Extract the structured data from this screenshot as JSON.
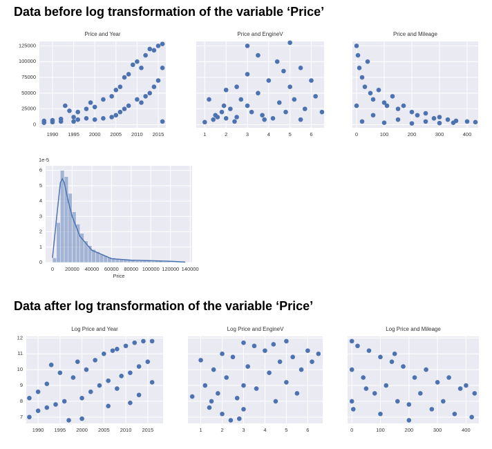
{
  "headings": [
    "Data before log transformation of the variable ‘Price’",
    "Data after log transformation of the variable ‘Price’"
  ],
  "chart_data": [
    {
      "type": "scatter",
      "title": "Price and Year",
      "color": "#4c72b0",
      "grid": true,
      "ytick_labels": true,
      "xlim": [
        1986.9,
        2016.8
      ],
      "xticks": [
        1990,
        1995,
        2000,
        2005,
        2010,
        2015
      ],
      "ylim": [
        -5000,
        132000
      ],
      "yticks": [
        0,
        25000,
        50000,
        75000,
        100000,
        125000
      ],
      "x": [
        1988,
        1988,
        1990,
        1990,
        1992,
        1992,
        1993,
        1994,
        1995,
        1995,
        1996,
        1996,
        1998,
        1998,
        1999,
        2000,
        2000,
        2002,
        2002,
        2004,
        2004,
        2005,
        2005,
        2006,
        2006,
        2007,
        2007,
        2008,
        2008,
        2009,
        2010,
        2010,
        2011,
        2011,
        2012,
        2012,
        2013,
        2013,
        2014,
        2014,
        2015,
        2015,
        2016,
        2016,
        2016
      ],
      "values": [
        3000,
        6000,
        4000,
        7000,
        5000,
        9000,
        30000,
        22000,
        5000,
        12000,
        8000,
        20000,
        10000,
        25000,
        35000,
        8000,
        28000,
        10000,
        40000,
        12000,
        45000,
        15000,
        55000,
        20000,
        60000,
        75000,
        25000,
        30000,
        80000,
        95000,
        40000,
        100000,
        35000,
        90000,
        110000,
        45000,
        120000,
        50000,
        60000,
        118000,
        70000,
        125000,
        5000,
        128000,
        90000
      ]
    },
    {
      "type": "scatter",
      "title": "Price and EngineV",
      "color": "#4c72b0",
      "grid": true,
      "ytick_labels": false,
      "xlim": [
        0.6,
        6.6
      ],
      "xticks": [
        1,
        2,
        3,
        4,
        5,
        6
      ],
      "ylim": [
        -5000,
        132000
      ],
      "yticks": [
        0,
        25000,
        50000,
        75000,
        100000,
        125000
      ],
      "x": [
        1.0,
        1.2,
        1.4,
        1.5,
        1.6,
        1.8,
        1.9,
        2.0,
        2.0,
        2.2,
        2.5,
        2.5,
        2.7,
        3.0,
        3.0,
        3.0,
        3.2,
        3.5,
        3.5,
        3.7,
        4.0,
        4.2,
        4.4,
        4.5,
        4.7,
        4.8,
        5.0,
        5.0,
        5.2,
        5.5,
        5.7,
        6.0,
        6.2,
        6.5,
        2.4,
        3.8,
        5.5
      ],
      "values": [
        4000,
        40000,
        8000,
        15000,
        12000,
        20000,
        30000,
        10000,
        55000,
        25000,
        60000,
        12000,
        40000,
        125000,
        80000,
        30000,
        20000,
        50000,
        110000,
        15000,
        70000,
        10000,
        100000,
        35000,
        85000,
        20000,
        130000,
        60000,
        40000,
        90000,
        25000,
        70000,
        45000,
        20000,
        5000,
        8000,
        8000
      ]
    },
    {
      "type": "scatter",
      "title": "Price and Mileage",
      "color": "#4c72b0",
      "grid": true,
      "ytick_labels": false,
      "xlim": [
        -15,
        440
      ],
      "xticks": [
        0,
        100,
        200,
        300,
        400
      ],
      "ylim": [
        -5000,
        132000
      ],
      "yticks": [
        0,
        25000,
        50000,
        75000,
        100000,
        125000
      ],
      "x": [
        0,
        5,
        10,
        20,
        30,
        40,
        50,
        60,
        80,
        100,
        110,
        130,
        150,
        170,
        200,
        220,
        250,
        280,
        300,
        330,
        360,
        400,
        430,
        20,
        100,
        200,
        300,
        0,
        60,
        150,
        250,
        350
      ],
      "values": [
        125000,
        110000,
        90000,
        75000,
        60000,
        100000,
        50000,
        40000,
        55000,
        35000,
        30000,
        45000,
        25000,
        30000,
        20000,
        15000,
        18000,
        10000,
        12000,
        8000,
        6000,
        5000,
        4000,
        5000,
        3000,
        2000,
        2500,
        30000,
        15000,
        8000,
        5000,
        3000
      ]
    },
    {
      "type": "histogram",
      "xlabel": "Price",
      "offset_label": "1e-5",
      "color": "#4c72b0",
      "grid": true,
      "ytick_labels": true,
      "xlim": [
        -7000,
        142000
      ],
      "xticks": [
        0,
        20000,
        40000,
        60000,
        80000,
        100000,
        120000,
        140000
      ],
      "ylim": [
        0,
        6.3
      ],
      "yticks": [
        0,
        1,
        2,
        3,
        4,
        5,
        6
      ],
      "bins": [
        0,
        4000,
        8000,
        12000,
        16000,
        20000,
        24000,
        28000,
        32000,
        36000,
        40000,
        44000,
        48000,
        52000,
        56000,
        60000,
        64000,
        68000,
        72000,
        76000,
        80000,
        84000,
        88000,
        92000,
        96000,
        100000,
        104000,
        108000,
        112000,
        116000,
        120000,
        124000,
        128000,
        132000
      ],
      "values": [
        0.3,
        2.6,
        6.0,
        5.6,
        4.5,
        3.3,
        2.5,
        1.9,
        1.4,
        1.1,
        0.85,
        0.7,
        0.55,
        0.45,
        0.35,
        0.3,
        0.25,
        0.2,
        0.2,
        0.15,
        0.12,
        0.1,
        0.1,
        0.12,
        0.1,
        0.08,
        0.08,
        0.1,
        0.06,
        0.05,
        0.04,
        0.04,
        0.03
      ],
      "kde": {
        "x": [
          0,
          4000,
          8000,
          10000,
          12000,
          16000,
          20000,
          28000,
          40000,
          60000,
          80000,
          100000,
          120000,
          135000
        ],
        "values": [
          0.3,
          2.8,
          5.2,
          5.45,
          5.2,
          4.0,
          3.0,
          1.7,
          0.8,
          0.25,
          0.15,
          0.12,
          0.08,
          0.03
        ]
      }
    },
    {
      "type": "scatter",
      "title": "Log Price and Year",
      "color": "#4c72b0",
      "grid": true,
      "ytick_labels": true,
      "xlim": [
        1987.3,
        2018.5
      ],
      "xticks": [
        1990,
        1995,
        2000,
        2005,
        2010,
        2015
      ],
      "ylim": [
        6.6,
        12.1
      ],
      "yticks": [
        7,
        8,
        9,
        10,
        11,
        12
      ],
      "x": [
        1988,
        1988,
        1990,
        1990,
        1992,
        1992,
        1993,
        1994,
        1995,
        1996,
        1997,
        1998,
        1999,
        2000,
        2000,
        2001,
        2002,
        2003,
        2004,
        2005,
        2006,
        2007,
        2008,
        2008,
        2009,
        2010,
        2011,
        2012,
        2013,
        2013,
        2014,
        2015,
        2016,
        2016,
        2011,
        2006
      ],
      "values": [
        7.0,
        8.2,
        7.4,
        8.6,
        7.6,
        9.1,
        10.3,
        7.8,
        9.8,
        8.0,
        6.8,
        9.5,
        10.5,
        8.2,
        6.9,
        10.0,
        8.6,
        10.6,
        9.0,
        11.0,
        9.3,
        11.2,
        8.8,
        11.3,
        9.6,
        11.5,
        9.8,
        11.7,
        10.2,
        8.4,
        11.8,
        10.5,
        11.8,
        9.2,
        7.9,
        7.7
      ]
    },
    {
      "type": "scatter",
      "title": "Log Price and EngineV",
      "color": "#4c72b0",
      "grid": true,
      "ytick_labels": false,
      "xlim": [
        0.4,
        6.7
      ],
      "xticks": [
        1,
        2,
        3,
        4,
        5,
        6
      ],
      "ylim": [
        6.6,
        12.1
      ],
      "yticks": [
        7,
        8,
        9,
        10,
        11,
        12
      ],
      "x": [
        0.6,
        1.0,
        1.2,
        1.4,
        1.6,
        1.8,
        2.0,
        2.0,
        2.2,
        2.4,
        2.5,
        2.7,
        3.0,
        3.0,
        3.0,
        3.2,
        3.5,
        3.6,
        4.0,
        4.2,
        4.4,
        4.5,
        4.7,
        5.0,
        5.0,
        5.3,
        5.5,
        5.7,
        6.0,
        6.2,
        6.5,
        1.5,
        2.8
      ],
      "values": [
        8.3,
        10.6,
        9.0,
        7.6,
        10.0,
        8.5,
        11.0,
        7.2,
        9.5,
        6.8,
        10.8,
        8.2,
        11.7,
        9.0,
        7.5,
        10.2,
        11.5,
        8.8,
        11.2,
        9.8,
        11.6,
        8.0,
        10.5,
        11.8,
        9.2,
        10.8,
        8.5,
        10.0,
        11.2,
        10.5,
        11.0,
        8.0,
        6.9
      ]
    },
    {
      "type": "scatter",
      "title": "Log Price and Mileage",
      "color": "#4c72b0",
      "grid": true,
      "ytick_labels": false,
      "xlim": [
        -15,
        445
      ],
      "xticks": [
        0,
        100,
        200,
        300,
        400
      ],
      "ylim": [
        6.6,
        12.1
      ],
      "yticks": [
        7,
        8,
        9,
        10,
        11,
        12
      ],
      "x": [
        0,
        0,
        0,
        5,
        20,
        40,
        60,
        80,
        100,
        120,
        140,
        160,
        180,
        200,
        200,
        220,
        240,
        260,
        280,
        300,
        320,
        340,
        360,
        380,
        400,
        420,
        430,
        100,
        50,
        150
      ],
      "values": [
        11.8,
        10.0,
        8.0,
        7.5,
        11.5,
        9.5,
        11.2,
        8.5,
        10.8,
        9.0,
        10.5,
        8.0,
        10.2,
        7.8,
        6.8,
        9.5,
        8.5,
        10.0,
        7.5,
        9.2,
        8.0,
        9.5,
        7.2,
        8.8,
        9.0,
        7.0,
        8.5,
        7.2,
        8.8,
        11.0
      ]
    }
  ]
}
